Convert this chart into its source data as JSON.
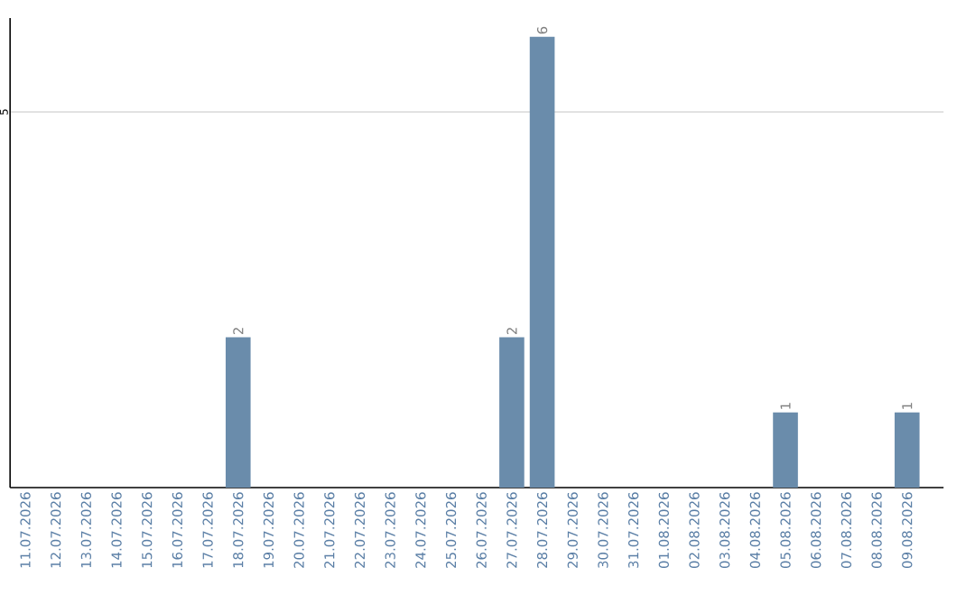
{
  "chart_data": {
    "type": "bar",
    "categories": [
      "11.07.2026",
      "12.07.2026",
      "13.07.2026",
      "14.07.2026",
      "15.07.2026",
      "16.07.2026",
      "17.07.2026",
      "18.07.2026",
      "19.07.2026",
      "20.07.2026",
      "21.07.2026",
      "22.07.2026",
      "23.07.2026",
      "24.07.2026",
      "25.07.2026",
      "26.07.2026",
      "27.07.2026",
      "28.07.2026",
      "29.07.2026",
      "30.07.2026",
      "31.07.2026",
      "01.08.2026",
      "02.08.2026",
      "03.08.2026",
      "04.08.2026",
      "05.08.2026",
      "06.08.2026",
      "07.08.2026",
      "08.08.2026",
      "09.08.2026"
    ],
    "values": [
      0,
      0,
      0,
      0,
      0,
      0,
      0,
      2,
      0,
      0,
      0,
      0,
      0,
      0,
      0,
      0,
      2,
      6,
      0,
      0,
      0,
      0,
      0,
      0,
      0,
      1,
      0,
      0,
      0,
      1
    ],
    "value_labels": [
      null,
      null,
      null,
      null,
      null,
      null,
      null,
      "2",
      null,
      null,
      null,
      null,
      null,
      null,
      null,
      null,
      "2",
      "6",
      null,
      null,
      null,
      null,
      null,
      null,
      null,
      "1",
      null,
      null,
      null,
      "1"
    ],
    "color": "#6a8cab",
    "ylim": [
      0,
      6.25
    ],
    "yticks": [
      5
    ],
    "grid": "y"
  }
}
